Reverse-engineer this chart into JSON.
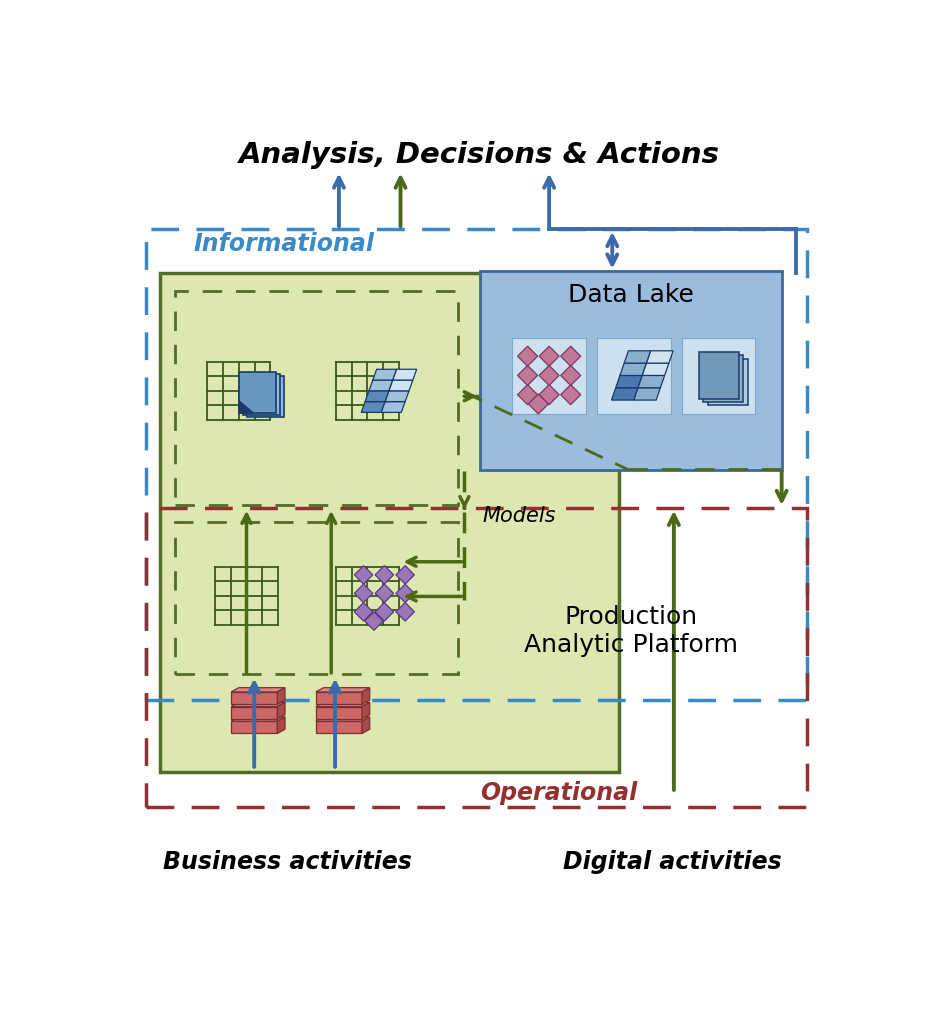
{
  "title_top": "Analysis, Decisions & Actions",
  "label_informational": "Informational",
  "label_operational": "Operational",
  "label_data_lake": "Data Lake",
  "label_models": "Models",
  "label_production": "Production\nAnalytic Platform",
  "label_business": "Business activities",
  "label_digital": "Digital activities",
  "bg_color": "#ffffff",
  "green_box_color": "#dde8b0",
  "green_box_edge": "#556b2a",
  "blue_box_color": "#9bbcdc",
  "blue_box_edge": "#3a6a9a",
  "info_border_color": "#3a8ac8",
  "operational_border_color": "#943030",
  "inner_dashed_color": "#556b2a",
  "arrow_blue": "#3a6aaa",
  "arrow_green": "#4a6a18",
  "grid_color": "#3a5a1a",
  "icon_blue_dark": "#1a3a6a",
  "icon_blue_mid": "#4a7aaa",
  "icon_blue_light": "#8aaece",
  "icon_blue_xlite": "#c0d8ee",
  "icon_pink": "#cc8898",
  "icon_mauve": "#9a5a78",
  "brick_front": "#cc6868",
  "brick_top": "#dc8888",
  "brick_right": "#aa4a4a",
  "brick_edge": "#7a3030"
}
